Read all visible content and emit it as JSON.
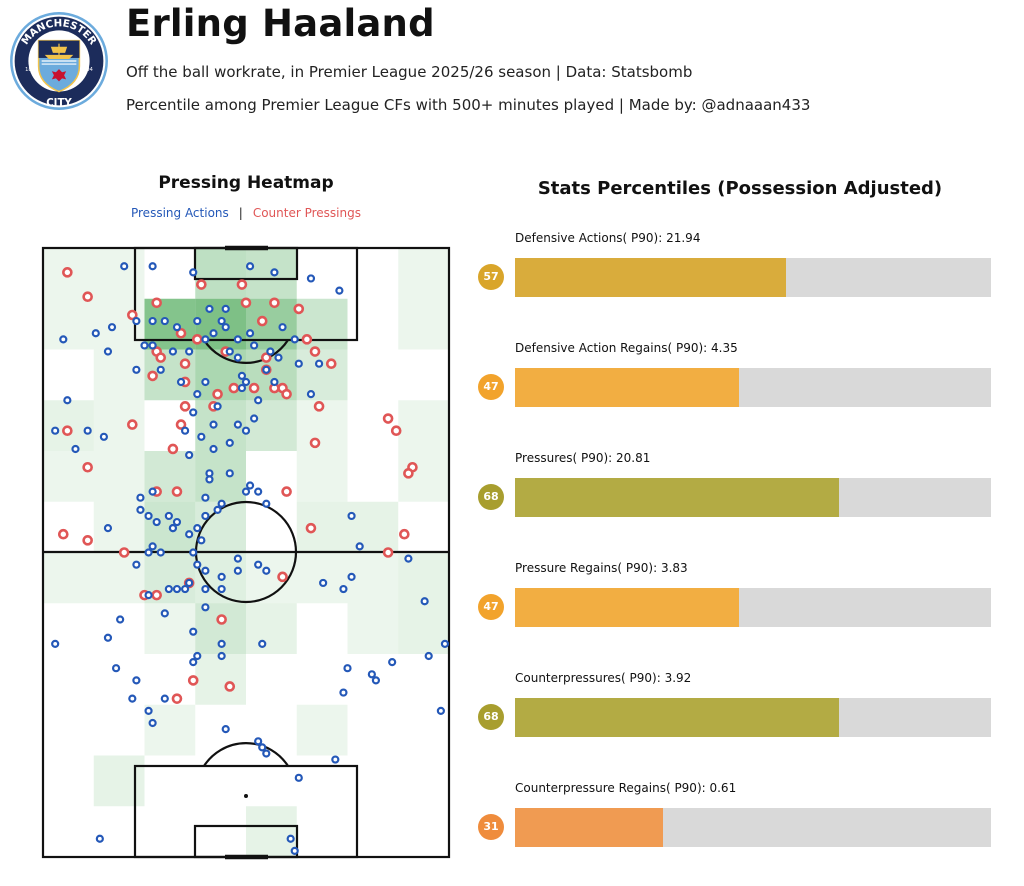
{
  "header": {
    "player_name": "Erling Haaland",
    "subtitle_1": "Off the ball workrate, in Premier League 2025/26 season | Data: Statsbomb",
    "subtitle_2": "Percentile among Premier League CFs with 500+ minutes played | Made by: @adnaaan433",
    "logo": {
      "top_text": "MANCHESTER",
      "bottom_text": "CITY",
      "left_num": "18",
      "right_num": "94",
      "colors": {
        "ring": "#6cabdd",
        "navy": "#1c2c5b",
        "red": "#c8102e",
        "gold": "#f2c34b"
      }
    }
  },
  "heatmap": {
    "title": "Pressing Heatmap",
    "legend": {
      "pressing": "Pressing Actions",
      "separator": "|",
      "counter": "Counter Pressings"
    },
    "colors": {
      "pressing": "#2458b8",
      "counter": "#e05656",
      "cell": "#2e9a3c"
    }
  },
  "chart_data": [
    {
      "type": "heatmap",
      "title": "Pressing Heatmap",
      "description_grid": "8 columns x 12 rows over a vertical pitch; value = relative intensity 0-1; row 0 is the attacking end (top)",
      "grid": [
        [
          0.05,
          0.05,
          0.0,
          0.4,
          0.35,
          0.0,
          0.0,
          0.05
        ],
        [
          0.05,
          0.05,
          0.85,
          0.9,
          0.7,
          0.3,
          0.0,
          0.05
        ],
        [
          0.0,
          0.05,
          0.35,
          0.55,
          0.45,
          0.2,
          0.0,
          0.0
        ],
        [
          0.1,
          0.05,
          0.0,
          0.35,
          0.25,
          0.05,
          0.0,
          0.05
        ],
        [
          0.05,
          0.05,
          0.25,
          0.35,
          0.0,
          0.05,
          0.0,
          0.05
        ],
        [
          0.0,
          0.05,
          0.3,
          0.2,
          0.0,
          0.1,
          0.1,
          0.0
        ],
        [
          0.05,
          0.05,
          0.2,
          0.15,
          0.05,
          0.05,
          0.05,
          0.1
        ],
        [
          0.0,
          0.0,
          0.05,
          0.25,
          0.1,
          0.0,
          0.05,
          0.1
        ],
        [
          0.0,
          0.0,
          0.0,
          0.1,
          0.0,
          0.0,
          0.0,
          0.0
        ],
        [
          0.0,
          0.0,
          0.05,
          0.0,
          0.0,
          0.05,
          0.0,
          0.0
        ],
        [
          0.0,
          0.1,
          0.0,
          0.0,
          0.0,
          0.0,
          0.0,
          0.0
        ],
        [
          0.0,
          0.0,
          0.0,
          0.0,
          0.1,
          0.0,
          0.0,
          0.0
        ]
      ],
      "pressing_actions": [
        [
          20,
          3
        ],
        [
          27,
          3
        ],
        [
          37,
          4
        ],
        [
          57,
          4
        ],
        [
          51,
          3
        ],
        [
          66,
          5
        ],
        [
          73,
          7
        ],
        [
          17,
          13
        ],
        [
          13,
          14
        ],
        [
          5,
          15
        ],
        [
          16,
          17
        ],
        [
          27,
          16
        ],
        [
          40,
          15
        ],
        [
          48,
          15
        ],
        [
          58,
          18
        ],
        [
          68,
          19
        ],
        [
          34,
          22
        ],
        [
          30,
          12
        ],
        [
          23,
          12
        ],
        [
          45,
          10
        ],
        [
          38,
          12
        ],
        [
          33,
          13
        ],
        [
          27,
          12
        ],
        [
          25,
          16
        ],
        [
          23,
          20
        ],
        [
          29,
          20
        ],
        [
          32,
          17
        ],
        [
          36,
          17
        ],
        [
          41,
          10
        ],
        [
          44,
          12
        ],
        [
          45,
          13
        ],
        [
          42,
          14
        ],
        [
          46,
          17
        ],
        [
          48,
          18
        ],
        [
          51,
          14
        ],
        [
          52,
          16
        ],
        [
          56,
          17
        ],
        [
          59,
          13
        ],
        [
          62,
          15
        ],
        [
          63,
          19
        ],
        [
          49,
          21
        ],
        [
          49,
          23
        ],
        [
          40,
          22
        ],
        [
          38,
          24
        ],
        [
          43,
          26
        ],
        [
          37,
          27
        ],
        [
          48,
          29
        ],
        [
          52,
          28
        ],
        [
          55,
          20
        ],
        [
          57,
          22
        ],
        [
          50,
          22
        ],
        [
          36,
          34
        ],
        [
          42,
          33
        ],
        [
          46,
          32
        ],
        [
          50,
          30
        ],
        [
          53,
          25
        ],
        [
          66,
          24
        ],
        [
          6,
          25
        ],
        [
          3,
          30
        ],
        [
          11,
          30
        ],
        [
          15,
          31
        ],
        [
          35,
          30
        ],
        [
          39,
          31
        ],
        [
          42,
          29
        ],
        [
          41,
          37
        ],
        [
          41,
          38
        ],
        [
          46,
          37
        ],
        [
          51,
          39
        ],
        [
          53,
          40
        ],
        [
          55,
          42
        ],
        [
          50,
          40
        ],
        [
          40,
          41
        ],
        [
          44,
          42
        ],
        [
          43,
          43
        ],
        [
          27,
          40
        ],
        [
          28,
          45
        ],
        [
          24,
          41
        ],
        [
          31,
          44
        ],
        [
          33,
          45
        ],
        [
          40,
          44
        ],
        [
          32,
          46
        ],
        [
          24,
          43
        ],
        [
          38,
          46
        ],
        [
          27,
          49
        ],
        [
          26,
          50
        ],
        [
          29,
          50
        ],
        [
          36,
          47
        ],
        [
          39,
          48
        ],
        [
          37,
          50
        ],
        [
          48,
          51
        ],
        [
          53,
          52
        ],
        [
          55,
          53
        ],
        [
          48,
          53
        ],
        [
          44,
          54
        ],
        [
          44,
          56
        ],
        [
          40,
          56
        ],
        [
          35,
          56
        ],
        [
          31,
          56
        ],
        [
          26,
          57
        ],
        [
          23,
          52
        ],
        [
          38,
          52
        ],
        [
          36,
          55
        ],
        [
          33,
          56
        ],
        [
          40,
          59
        ],
        [
          30,
          60
        ],
        [
          19,
          61
        ],
        [
          16,
          64
        ],
        [
          37,
          63
        ],
        [
          44,
          65
        ],
        [
          3,
          65
        ],
        [
          18,
          69
        ],
        [
          23,
          71
        ],
        [
          22,
          74
        ],
        [
          30,
          74
        ],
        [
          53,
          81
        ],
        [
          54,
          82
        ],
        [
          69,
          55
        ],
        [
          74,
          56
        ],
        [
          76,
          54
        ],
        [
          78,
          49
        ],
        [
          8,
          33
        ],
        [
          81,
          70
        ],
        [
          82,
          71
        ],
        [
          95,
          67
        ],
        [
          94,
          58
        ],
        [
          86,
          68
        ],
        [
          54,
          65
        ],
        [
          44,
          67
        ],
        [
          37,
          68
        ],
        [
          38,
          67
        ],
        [
          75,
          69
        ],
        [
          98,
          76
        ],
        [
          74,
          73
        ],
        [
          55,
          83
        ],
        [
          72,
          84
        ],
        [
          45,
          79
        ],
        [
          63,
          87
        ],
        [
          61,
          97
        ],
        [
          62,
          99
        ],
        [
          14,
          97
        ],
        [
          90,
          51
        ],
        [
          99,
          65
        ],
        [
          16,
          46
        ],
        [
          26,
          44
        ],
        [
          40,
          53
        ],
        [
          76,
          44
        ],
        [
          32,
          46
        ],
        [
          27,
          78
        ],
        [
          26,
          76
        ]
      ],
      "counter_pressings": [
        [
          6,
          4
        ],
        [
          11,
          8
        ],
        [
          22,
          11
        ],
        [
          28,
          9
        ],
        [
          39,
          6
        ],
        [
          49,
          6
        ],
        [
          50,
          9
        ],
        [
          57,
          9
        ],
        [
          54,
          12
        ],
        [
          63,
          10
        ],
        [
          65,
          15
        ],
        [
          67,
          17
        ],
        [
          71,
          19
        ],
        [
          52,
          23
        ],
        [
          38,
          15
        ],
        [
          45,
          17
        ],
        [
          55,
          18
        ],
        [
          59,
          23
        ],
        [
          60,
          24
        ],
        [
          28,
          17
        ],
        [
          35,
          19
        ],
        [
          35,
          22
        ],
        [
          27,
          21
        ],
        [
          35,
          26
        ],
        [
          42,
          26
        ],
        [
          43,
          24
        ],
        [
          57,
          23
        ],
        [
          68,
          26
        ],
        [
          85,
          28
        ],
        [
          87,
          30
        ],
        [
          91,
          36
        ],
        [
          90,
          37
        ],
        [
          6,
          30
        ],
        [
          22,
          29
        ],
        [
          32,
          33
        ],
        [
          28,
          40
        ],
        [
          33,
          40
        ],
        [
          60,
          40
        ],
        [
          66,
          46
        ],
        [
          5,
          47
        ],
        [
          11,
          48
        ],
        [
          20,
          50
        ],
        [
          85,
          50
        ],
        [
          89,
          47
        ],
        [
          25,
          57
        ],
        [
          28,
          57
        ],
        [
          37,
          71
        ],
        [
          33,
          74
        ],
        [
          46,
          72
        ],
        [
          36,
          55
        ],
        [
          59,
          54
        ],
        [
          44,
          61
        ],
        [
          67,
          32
        ],
        [
          11,
          36
        ],
        [
          34,
          29
        ],
        [
          47,
          23
        ],
        [
          29,
          18
        ],
        [
          34,
          14
        ],
        [
          55,
          20
        ]
      ]
    },
    {
      "type": "bar",
      "title": "Stats Percentiles (Possession Adjusted)",
      "categories": [
        "Defensive Actions( P90)",
        "Defensive Action Regains( P90)",
        "Pressures( P90)",
        "Pressure Regains( P90)",
        "Counterpressures( P90)",
        "Counterpressure Regains( P90)"
      ],
      "labels": [
        "Defensive Actions( P90): 21.94",
        "Defensive Action Regains( P90): 4.35",
        "Pressures( P90): 20.81",
        "Pressure Regains( P90): 3.83",
        "Counterpressures( P90): 3.92",
        "Counterpressure Regains( P90): 0.61"
      ],
      "raw_values": [
        21.94,
        4.35,
        20.81,
        3.83,
        3.92,
        0.61
      ],
      "percentiles": [
        57,
        47,
        68,
        47,
        68,
        31
      ],
      "colors": [
        "#d9ac3c",
        "#f2ae42",
        "#b3ab44",
        "#f2ae42",
        "#b3ab44",
        "#f09b52"
      ],
      "badge_colors": [
        "#d9a52a",
        "#f2a32c",
        "#a89e2e",
        "#f2a32c",
        "#a89e2e",
        "#ef8c3c"
      ],
      "track_color": "#d9d9d9",
      "ylim": [
        0,
        100
      ]
    }
  ]
}
